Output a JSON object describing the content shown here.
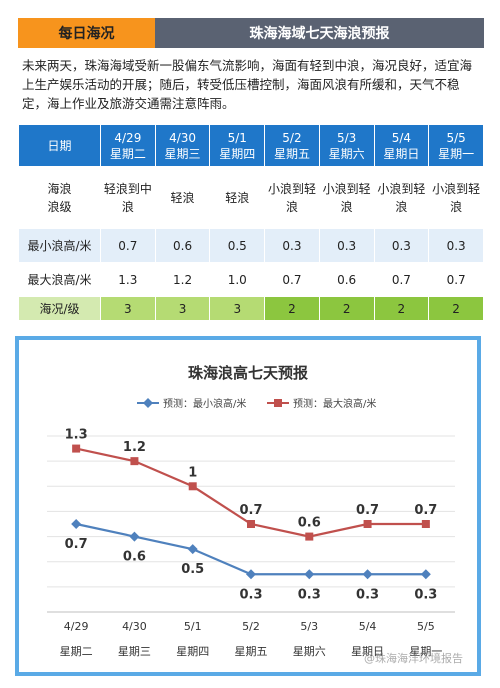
{
  "header": {
    "left_title": "每日海况",
    "right_title": "珠海海域七天海浪预报"
  },
  "summary": "未来两天，珠海海域受新一股偏东气流影响，海面有轻到中浪，海况良好，适宜海上生产娱乐活动的开展；随后，转受低压槽控制，海面风浪有所缓和，天气不稳定，海上作业及旅游交通需注意阵雨。",
  "table": {
    "row_labels": {
      "date": "日期",
      "level_line1": "海浪",
      "level_line2": "浪级",
      "min": "最小浪高/米",
      "max": "最大浪高/米",
      "grade": "海况/级"
    },
    "days": [
      {
        "date": "4/29",
        "weekday": "星期二",
        "level": "轻浪到中浪",
        "min": "0.7",
        "max": "1.3",
        "grade": "3"
      },
      {
        "date": "4/30",
        "weekday": "星期三",
        "level": "轻浪",
        "min": "0.6",
        "max": "1.2",
        "grade": "3"
      },
      {
        "date": "5/1",
        "weekday": "星期四",
        "level": "轻浪",
        "min": "0.5",
        "max": "1.0",
        "grade": "3"
      },
      {
        "date": "5/2",
        "weekday": "星期五",
        "level": "小浪到轻浪",
        "min": "0.3",
        "max": "0.7",
        "grade": "2"
      },
      {
        "date": "5/3",
        "weekday": "星期六",
        "level": "小浪到轻浪",
        "min": "0.3",
        "max": "0.6",
        "grade": "2"
      },
      {
        "date": "5/4",
        "weekday": "星期日",
        "level": "小浪到轻浪",
        "min": "0.3",
        "max": "0.7",
        "grade": "2"
      },
      {
        "date": "5/5",
        "weekday": "星期一",
        "level": "小浪到轻浪",
        "min": "0.3",
        "max": "0.7",
        "grade": "2"
      }
    ]
  },
  "chart_data": {
    "type": "line",
    "title": "珠海浪高七天预报",
    "categories": [
      "4/29",
      "4/30",
      "5/1",
      "5/2",
      "5/3",
      "5/4",
      "5/5"
    ],
    "weekdays": [
      "星期二",
      "星期三",
      "星期四",
      "星期五",
      "星期六",
      "星期日",
      "星期一"
    ],
    "series": [
      {
        "name": "预测：最小浪高/米",
        "color": "#4f81bd",
        "marker": "diamond",
        "values": [
          0.7,
          0.6,
          0.5,
          0.3,
          0.3,
          0.3,
          0.3
        ],
        "labels": [
          "0.7",
          "0.6",
          "0.5",
          "0.3",
          "0.3",
          "0.3",
          "0.3"
        ]
      },
      {
        "name": "预测：最大浪高/米",
        "color": "#c0504d",
        "marker": "square",
        "values": [
          1.3,
          1.2,
          1.0,
          0.7,
          0.6,
          0.7,
          0.7
        ],
        "labels": [
          "1.3",
          "1.2",
          "1",
          "0.7",
          "0.6",
          "0.7",
          "0.7"
        ]
      }
    ],
    "ylim": [
      0,
      1.4
    ],
    "grid": true,
    "legend_position": "top"
  },
  "watermark": "@珠海海洋环境报告"
}
